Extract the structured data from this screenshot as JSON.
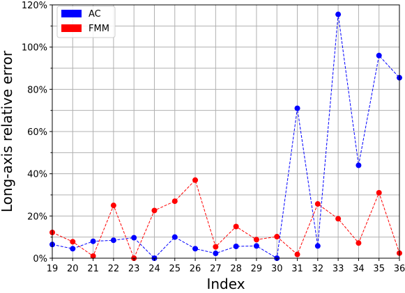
{
  "chart_data": {
    "type": "line",
    "title": "",
    "xlabel": "Index",
    "ylabel": "Long-axis relative error",
    "x": [
      19,
      20,
      21,
      22,
      23,
      24,
      25,
      26,
      27,
      28,
      29,
      30,
      31,
      32,
      33,
      34,
      35,
      36
    ],
    "xlim": [
      19,
      36
    ],
    "ylim": [
      0,
      120
    ],
    "y_ticks": [
      0,
      20,
      40,
      60,
      80,
      100,
      120
    ],
    "y_tick_labels": [
      "0%",
      "20%",
      "40%",
      "60%",
      "80%",
      "100%",
      "120%"
    ],
    "y_minor_step": 10,
    "grid": true,
    "legend_position": "top-left",
    "series": [
      {
        "name": "AC",
        "color": "#0000ff",
        "line_style": "dashed",
        "marker": "circle",
        "values": [
          6.5,
          4.5,
          8,
          8.5,
          9.7,
          0,
          10,
          4.5,
          2.3,
          5.6,
          5.8,
          0,
          71,
          5.8,
          115.5,
          44,
          96,
          85.5
        ]
      },
      {
        "name": "FMM",
        "color": "#ff0000",
        "line_style": "dashed",
        "marker": "circle",
        "values": [
          12.2,
          7.8,
          1,
          25,
          0,
          22.6,
          27,
          37,
          5.4,
          15,
          8.8,
          10.2,
          1.8,
          25.7,
          18.7,
          7.2,
          31,
          2.4
        ]
      }
    ]
  }
}
